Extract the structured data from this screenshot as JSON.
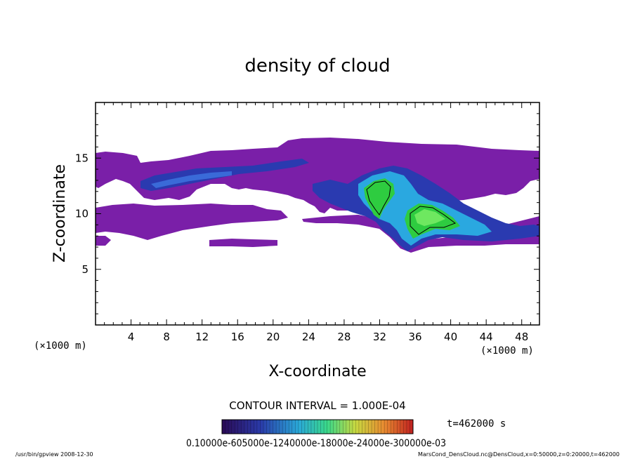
{
  "chart_data": {
    "type": "heatmap",
    "title": "density of cloud",
    "xlabel": "X-coordinate",
    "ylabel": "Z-coordinate",
    "x_unit": "(×1000 m)",
    "y_unit": "(×1000 m)",
    "xlim": [
      0,
      50
    ],
    "ylim": [
      0,
      20
    ],
    "x_ticks": [
      "4",
      "8",
      "12",
      "16",
      "20",
      "24",
      "28",
      "32",
      "36",
      "40",
      "44",
      "48"
    ],
    "y_ticks": [
      "5",
      "10",
      "15"
    ],
    "contour_interval_label": "CONTOUR INTERVAL = 1.000E-04",
    "time_label": "t=462000 s",
    "colorbar_labels_text": "0.10000e-605000e-1240000e-18000e-24000e-300000e-03",
    "colorbar_levels": [
      0.0001,
      0.0006,
      0.0012,
      0.0018,
      0.0024,
      0.003
    ],
    "colorbar_colors": [
      "#1a0533",
      "#3a0a6e",
      "#1d2fa8",
      "#1f6fd6",
      "#22b3e8",
      "#2ee6b0",
      "#55e84a",
      "#a8e830",
      "#e6c82a",
      "#e8872a",
      "#d8402a",
      "#b01818"
    ],
    "regions": [
      {
        "name": "upper-band",
        "level": 1,
        "color": "#7a1fa8"
      },
      {
        "name": "lower-band",
        "level": 1,
        "color": "#7a1fa8"
      },
      {
        "name": "strip-7km",
        "level": 1,
        "color": "#7a1fa8"
      },
      {
        "name": "core-31km",
        "level": 3,
        "color": "#2ecc40"
      },
      {
        "name": "core-37km",
        "level": 3,
        "color": "#2ecc40"
      }
    ],
    "grid": false,
    "legend": "bottom-center"
  },
  "footer": {
    "left": "/usr/bin/gpview   2008-12-30",
    "right": "MarsCond_DensCloud.nc@DensCloud,x=0:50000,z=0:20000,t=462000"
  }
}
